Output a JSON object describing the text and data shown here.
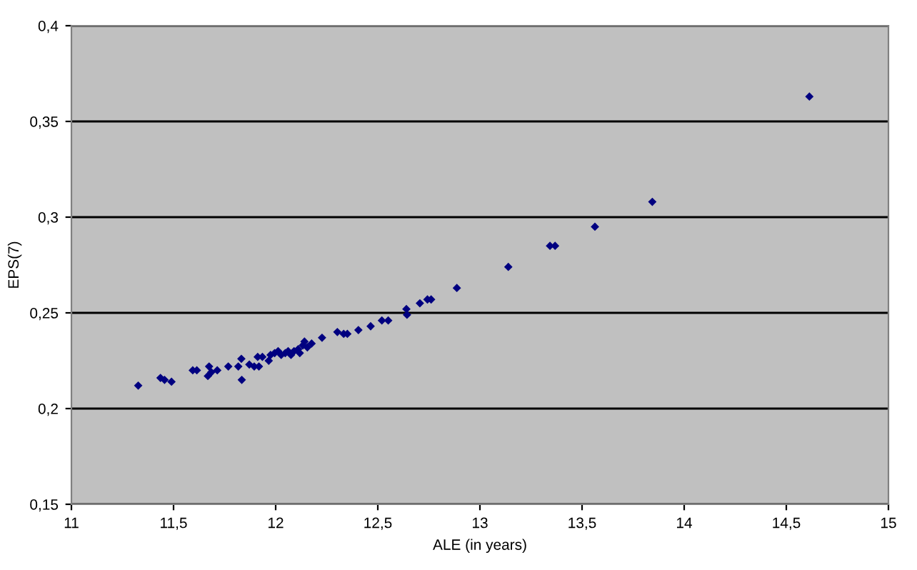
{
  "chart_data": {
    "type": "scatter",
    "xlabel": "ALE (in years)",
    "ylabel": "EPS(7)",
    "x": [
      11.327,
      11.436,
      11.456,
      11.49,
      11.594,
      11.614,
      11.674,
      11.668,
      11.685,
      11.714,
      11.768,
      11.817,
      11.832,
      11.834,
      11.871,
      11.895,
      11.912,
      11.918,
      11.935,
      11.966,
      11.975,
      11.995,
      12.012,
      12.027,
      12.047,
      12.061,
      12.075,
      12.09,
      12.11,
      12.118,
      12.133,
      12.141,
      12.155,
      12.176,
      12.227,
      12.302,
      12.333,
      12.351,
      12.405,
      12.465,
      12.52,
      12.551,
      12.64,
      12.643,
      12.706,
      12.743,
      12.761,
      12.887,
      13.139,
      13.343,
      13.368,
      13.563,
      13.844,
      14.613
    ],
    "series": [
      {
        "color": "#000080",
        "values": [
          0.212,
          0.216,
          0.215,
          0.214,
          0.22,
          0.22,
          0.222,
          0.217,
          0.219,
          0.22,
          0.222,
          0.222,
          0.226,
          0.215,
          0.223,
          0.222,
          0.227,
          0.222,
          0.227,
          0.225,
          0.228,
          0.229,
          0.23,
          0.228,
          0.229,
          0.23,
          0.228,
          0.23,
          0.231,
          0.229,
          0.233,
          0.235,
          0.232,
          0.234,
          0.237,
          0.24,
          0.239,
          0.239,
          0.241,
          0.243,
          0.246,
          0.246,
          0.252,
          0.249,
          0.255,
          0.257,
          0.257,
          0.263,
          0.274,
          0.285,
          0.285,
          0.295,
          0.308,
          0.363
        ]
      }
    ],
    "xlim": [
      11,
      15
    ],
    "xticks": [
      11,
      {
        "value": 11.5,
        "label": "11,5"
      },
      12,
      {
        "value": 12.5,
        "label": "12,5"
      },
      13,
      {
        "value": 13.5,
        "label": "13,5"
      },
      14,
      {
        "value": 14.5,
        "label": "14,5"
      },
      15
    ],
    "ylim": [
      0.15,
      0.4
    ],
    "yticks": [
      {
        "value": 0.15,
        "label": "0,15"
      },
      {
        "value": 0.2,
        "label": "0,2"
      },
      {
        "value": 0.25,
        "label": "0,25"
      },
      {
        "value": 0.3,
        "label": "0,3"
      },
      {
        "value": 0.35,
        "label": "0,35"
      },
      {
        "value": 0.4,
        "label": "0,4"
      }
    ],
    "grid": "y",
    "marker": "diamond",
    "legend": false
  }
}
